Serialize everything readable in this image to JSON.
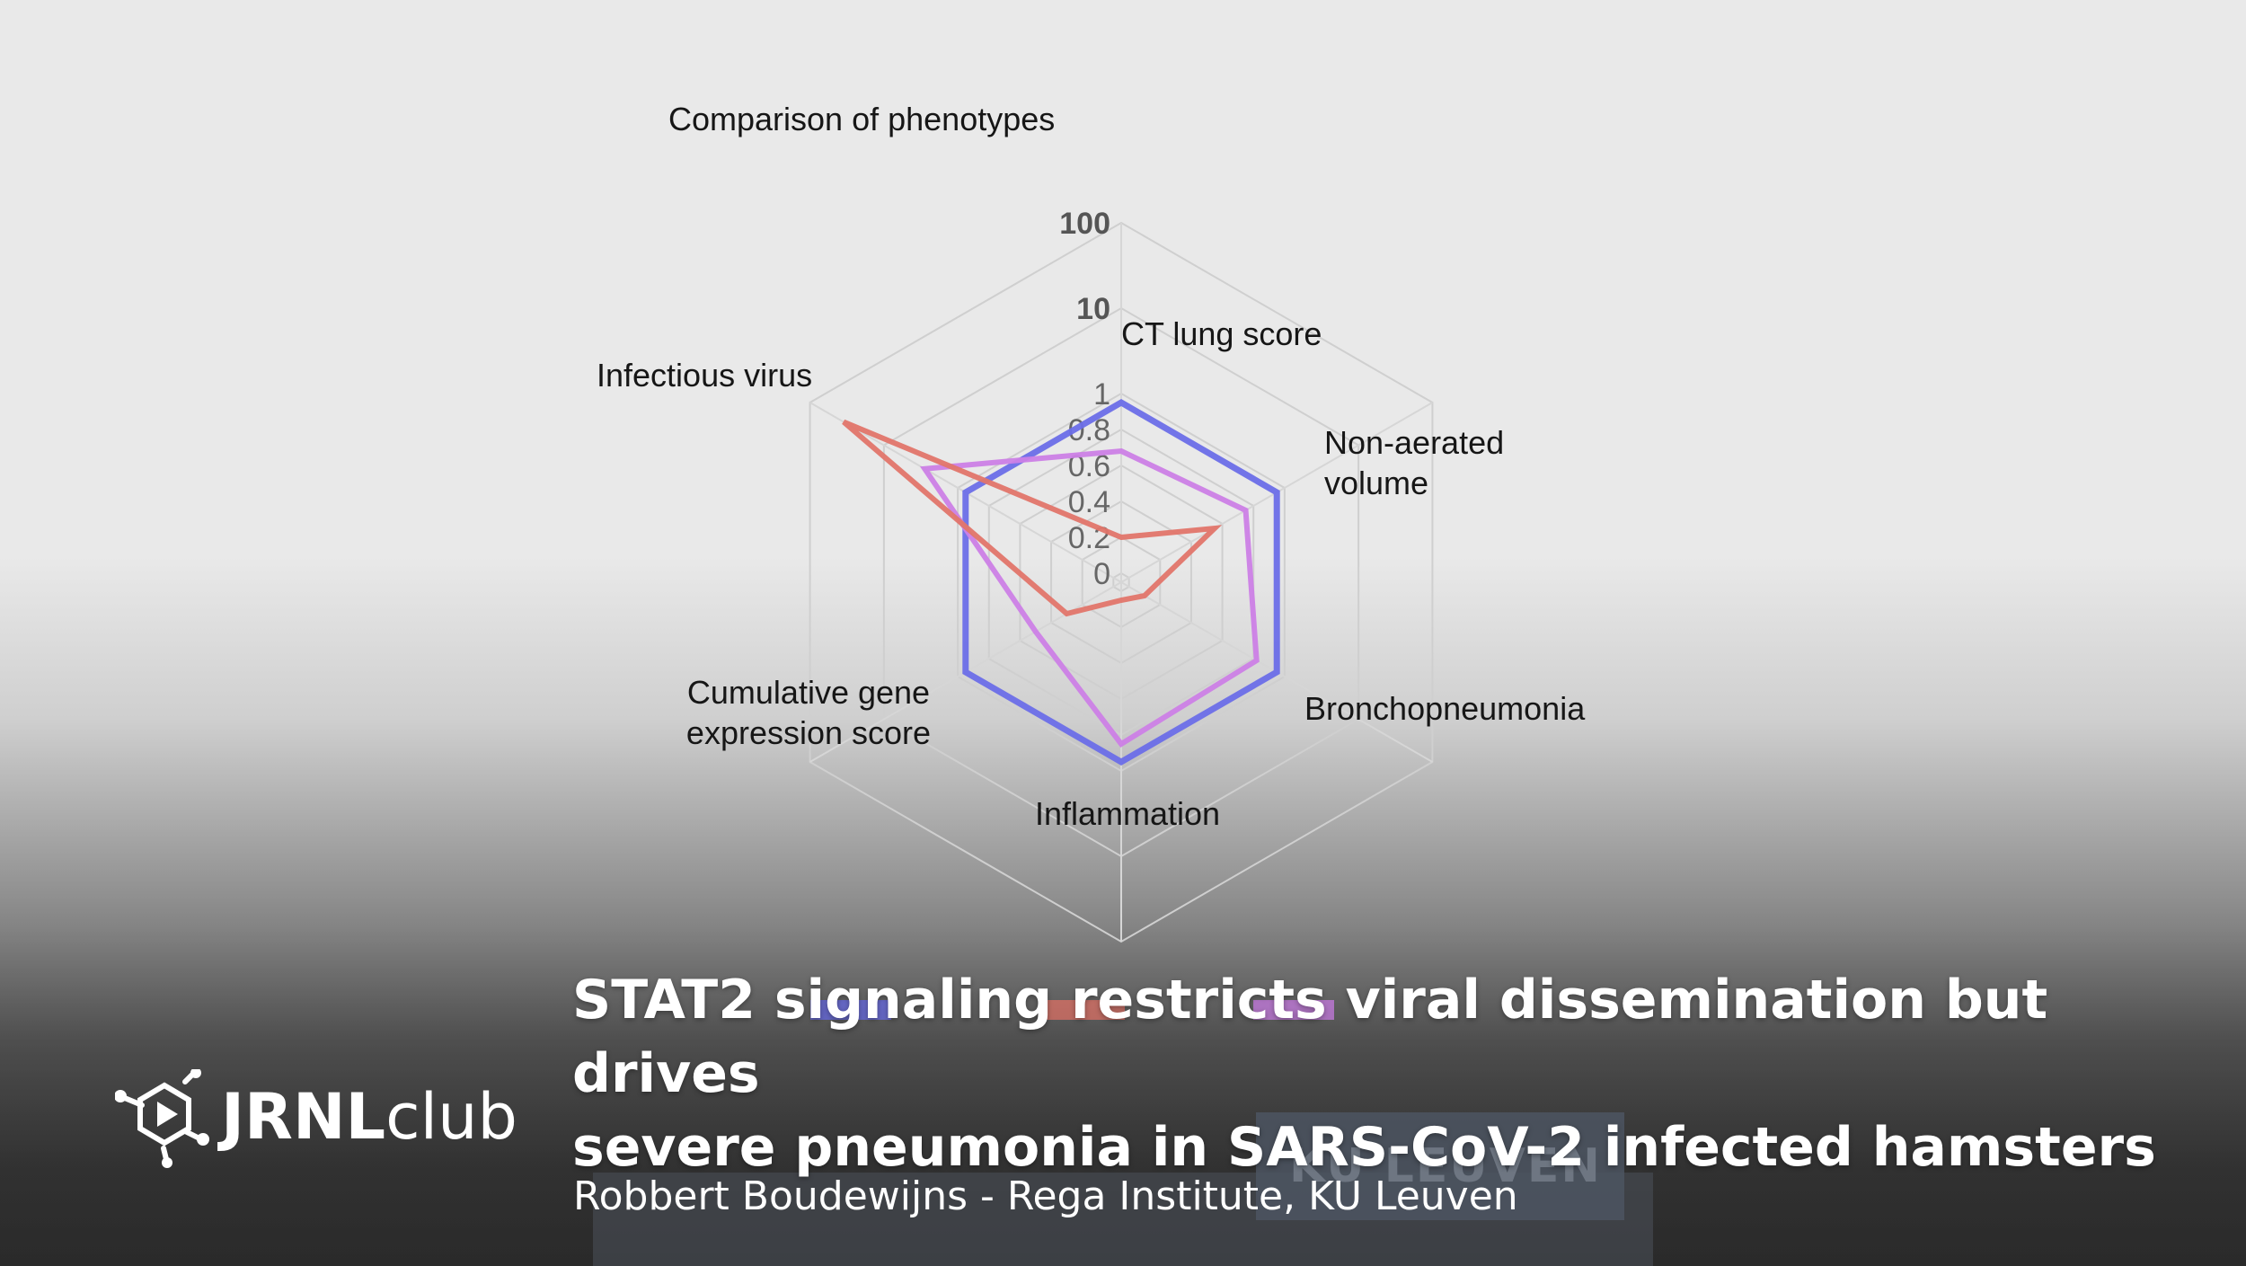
{
  "chart_data": {
    "type": "radar",
    "title": "Comparison of phenotypes",
    "axes": [
      "CT lung score",
      "Non-aerated volume",
      "Bronchopneumonia",
      "Inflammation",
      "Cumulative gene expression score",
      "Infectious virus"
    ],
    "axis_labels_display": [
      [
        "CT lung score"
      ],
      [
        "Non-aerated",
        "volume"
      ],
      [
        "Bronchopneumonia"
      ],
      [
        "Inflammation"
      ],
      [
        "Cumulative gene",
        "expression score"
      ],
      [
        "Infectious virus"
      ]
    ],
    "ticks": [
      "0",
      "0.2",
      "0.4",
      "0.6",
      "0.8",
      "1",
      "10",
      "100"
    ],
    "series": [
      {
        "color": "#6b6ee8",
        "values": [
          0.95,
          0.95,
          0.95,
          0.95,
          0.95,
          0.95
        ]
      },
      {
        "color": "#cc7fe6",
        "values": [
          0.68,
          0.75,
          0.82,
          0.85,
          0.5,
          2.8
        ]
      },
      {
        "color": "#e2756a",
        "values": [
          0.2,
          0.55,
          0.1,
          0.05,
          0.3,
          35
        ]
      }
    ]
  },
  "overlay": {
    "title_line1": "STAT2 signaling restricts viral dissemination but drives",
    "title_line2": "severe pneumonia in SARS-CoV-2 infected hamsters",
    "subtitle": "Robbert Boudewijns - Rega Institute, KU Leuven",
    "background_sign_text": "KU LEUVEN"
  },
  "logo": {
    "part1": "JRNL",
    "part2": "club"
  }
}
